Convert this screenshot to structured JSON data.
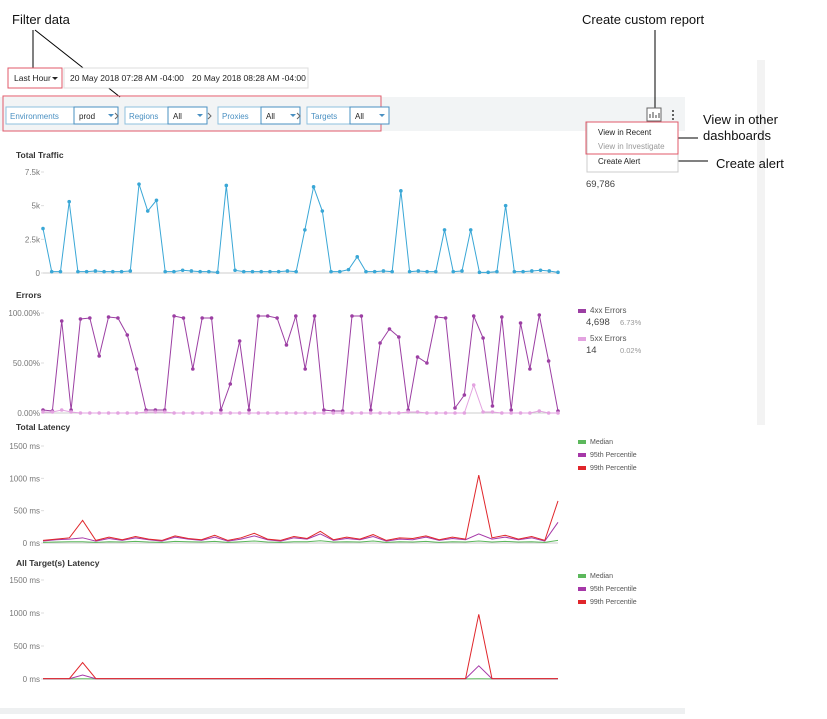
{
  "annotations": {
    "filter_data": "Filter data",
    "create_custom_report": "Create custom report",
    "view_in_other_dashboards": [
      "View in other",
      "dashboards"
    ],
    "create_alert": "Create alert"
  },
  "toolbar": {
    "time_range": "Last Hour",
    "start": "20 May 2018 07:28 AM -04:00",
    "end": "20 May 2018 08:28 AM -04:00"
  },
  "filters": [
    {
      "label": "Environments",
      "value": "prod"
    },
    {
      "label": "Regions",
      "value": "All"
    },
    {
      "label": "Proxies",
      "value": "All"
    },
    {
      "label": "Targets",
      "value": "All"
    }
  ],
  "menu": [
    "View in Recent",
    "View in Investigate",
    "Create Alert"
  ],
  "chart_data": [
    {
      "type": "line",
      "title": "Total Traffic",
      "total": "69,786",
      "ylim": [
        0,
        7500
      ],
      "yticks": [
        0,
        {
          "value": 2500,
          "label": "2.5k"
        },
        {
          "value": 5000,
          "label": "5k"
        },
        {
          "value": 7500,
          "label": "7.5k"
        }
      ],
      "markers": true,
      "series": [
        {
          "color": "#3aa7d6",
          "values": [
            3300,
            100,
            100,
            5300,
            100,
            100,
            150,
            100,
            100,
            100,
            150,
            6600,
            4600,
            5400,
            100,
            100,
            200,
            150,
            100,
            100,
            50,
            6500,
            200,
            100,
            100,
            100,
            100,
            100,
            150,
            100,
            3200,
            6400,
            4600,
            100,
            100,
            250,
            1200,
            100,
            100,
            150,
            100,
            6100,
            100,
            150,
            100,
            100,
            3200,
            100,
            150,
            3200,
            50,
            50,
            100,
            5000,
            100,
            100,
            150,
            200,
            150,
            50
          ]
        }
      ]
    },
    {
      "type": "line",
      "title": "Errors",
      "ylim": [
        0,
        100
      ],
      "yticks": [
        {
          "value": 0,
          "label": "0.00%"
        },
        {
          "value": 50,
          "label": "50.00%"
        },
        {
          "value": 100,
          "label": "100.00%"
        }
      ],
      "markers": true,
      "series": [
        {
          "name": "4xx Errors",
          "total": "4,698",
          "share": "6.73%",
          "color": "#9c3fa3",
          "values": [
            3,
            2,
            92,
            3,
            94,
            95,
            57,
            96,
            95,
            78,
            44,
            3,
            3,
            3,
            97,
            95,
            44,
            95,
            95,
            3,
            29,
            72,
            3,
            97,
            97,
            95,
            68,
            97,
            44,
            97,
            3,
            2,
            2,
            97,
            97,
            3,
            70,
            84,
            76,
            3,
            56,
            50,
            96,
            95,
            5,
            18,
            97,
            75,
            7,
            96,
            3,
            90,
            44,
            98,
            52,
            2
          ]
        },
        {
          "name": "5xx Errors",
          "total": "14",
          "share": "0.02%",
          "color": "#e3a3e0",
          "values": [
            1,
            1,
            3,
            1,
            0,
            0,
            0,
            0,
            0,
            0,
            0,
            1,
            1,
            1,
            0,
            0,
            0,
            0,
            0,
            0,
            0,
            0,
            0,
            0,
            0,
            0,
            0,
            0,
            0,
            0,
            0,
            0,
            0,
            0,
            0,
            0,
            0,
            0,
            0,
            1,
            1,
            0,
            0,
            0,
            0,
            0,
            28,
            1,
            1,
            0,
            0,
            0,
            0,
            2,
            0,
            0
          ]
        }
      ]
    },
    {
      "type": "line",
      "title": "Total Latency",
      "ylim": [
        0,
        1500
      ],
      "yticks": [
        {
          "value": 0,
          "label": "0 ms"
        },
        {
          "value": 500,
          "label": "500 ms"
        },
        {
          "value": 1000,
          "label": "1000 ms"
        },
        {
          "value": 1500,
          "label": "1500 ms"
        }
      ],
      "markers": false,
      "series": [
        {
          "name": "Median",
          "color": "#5cb85c",
          "values": [
            10,
            15,
            20,
            20,
            10,
            20,
            15,
            25,
            15,
            10,
            25,
            20,
            15,
            25,
            10,
            20,
            30,
            15,
            10,
            20,
            20,
            35,
            15,
            20,
            15,
            30,
            10,
            20,
            15,
            25,
            10,
            20,
            15,
            30,
            15,
            25,
            15,
            20,
            10,
            40
          ]
        },
        {
          "name": "95th Percentile",
          "color": "#a638a8",
          "values": [
            30,
            50,
            60,
            80,
            30,
            70,
            40,
            80,
            50,
            30,
            90,
            60,
            40,
            90,
            30,
            60,
            110,
            50,
            30,
            80,
            60,
            140,
            40,
            70,
            50,
            100,
            30,
            60,
            50,
            90,
            40,
            70,
            50,
            140,
            60,
            90,
            50,
            80,
            30,
            320
          ]
        },
        {
          "name": "99th Percentile",
          "color": "#e0262b",
          "values": [
            40,
            60,
            80,
            350,
            40,
            90,
            50,
            100,
            60,
            40,
            110,
            70,
            50,
            120,
            40,
            80,
            150,
            60,
            40,
            100,
            70,
            180,
            50,
            90,
            60,
            130,
            40,
            80,
            70,
            110,
            50,
            90,
            60,
            1050,
            80,
            120,
            60,
            100,
            40,
            650
          ]
        }
      ]
    },
    {
      "type": "line",
      "title": "All Target(s) Latency",
      "ylim": [
        0,
        1500
      ],
      "yticks": [
        {
          "value": 0,
          "label": "0 ms"
        },
        {
          "value": 500,
          "label": "500 ms"
        },
        {
          "value": 1000,
          "label": "1000 ms"
        },
        {
          "value": 1500,
          "label": "1500 ms"
        }
      ],
      "markers": false,
      "series": [
        {
          "name": "Median",
          "color": "#5cb85c",
          "values": [
            2,
            2,
            2,
            3,
            2,
            2,
            2,
            2,
            2,
            2,
            2,
            2,
            2,
            2,
            2,
            2,
            2,
            2,
            2,
            2,
            2,
            2,
            2,
            2,
            2,
            2,
            2,
            2,
            2,
            2,
            2,
            2,
            2,
            4,
            2,
            2,
            2,
            2,
            2,
            2
          ]
        },
        {
          "name": "95th Percentile",
          "color": "#a638a8",
          "values": [
            4,
            4,
            4,
            60,
            4,
            4,
            4,
            4,
            4,
            4,
            4,
            4,
            4,
            4,
            4,
            4,
            4,
            4,
            4,
            4,
            4,
            4,
            4,
            4,
            4,
            4,
            4,
            4,
            4,
            4,
            4,
            4,
            4,
            200,
            4,
            4,
            4,
            4,
            4,
            4
          ]
        },
        {
          "name": "99th Percentile",
          "color": "#e0262b",
          "values": [
            6,
            6,
            6,
            250,
            6,
            6,
            6,
            6,
            6,
            6,
            6,
            6,
            6,
            6,
            6,
            6,
            6,
            8,
            6,
            6,
            6,
            6,
            6,
            6,
            6,
            6,
            6,
            6,
            6,
            6,
            6,
            6,
            6,
            980,
            6,
            6,
            6,
            6,
            6,
            6
          ]
        }
      ]
    }
  ]
}
